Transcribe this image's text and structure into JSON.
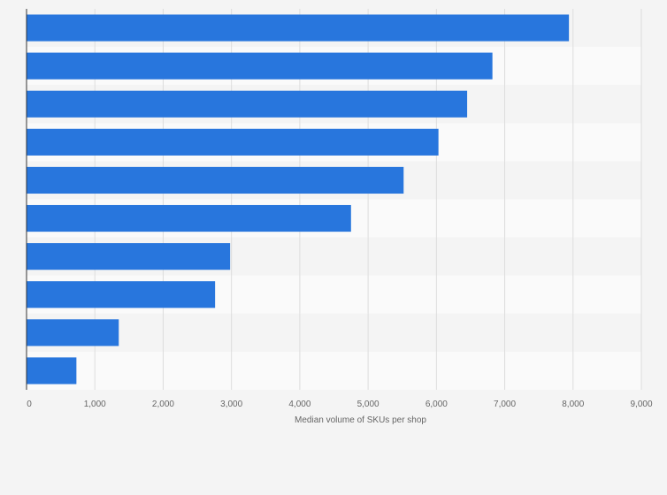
{
  "chart_data": {
    "type": "bar",
    "orientation": "horizontal",
    "categories": [
      "",
      "",
      "",
      "",
      "",
      "",
      "",
      "",
      "",
      ""
    ],
    "values": [
      7940,
      6820,
      6450,
      6030,
      5520,
      4750,
      2980,
      2760,
      1350,
      730
    ],
    "xlabel": "Median volume of SKUs per shop",
    "ylabel": "",
    "xlim": [
      0,
      9000
    ],
    "x_ticks": [
      0,
      1000,
      2000,
      3000,
      4000,
      5000,
      6000,
      7000,
      8000,
      9000
    ],
    "x_tick_labels": [
      "0",
      "1,000",
      "2,000",
      "3,000",
      "4,000",
      "5,000",
      "6,000",
      "7,000",
      "8,000",
      "9,000"
    ],
    "grid": true,
    "bar_color": "#2876dd",
    "band_colors": [
      "#f4f4f4",
      "#fafafa"
    ]
  }
}
